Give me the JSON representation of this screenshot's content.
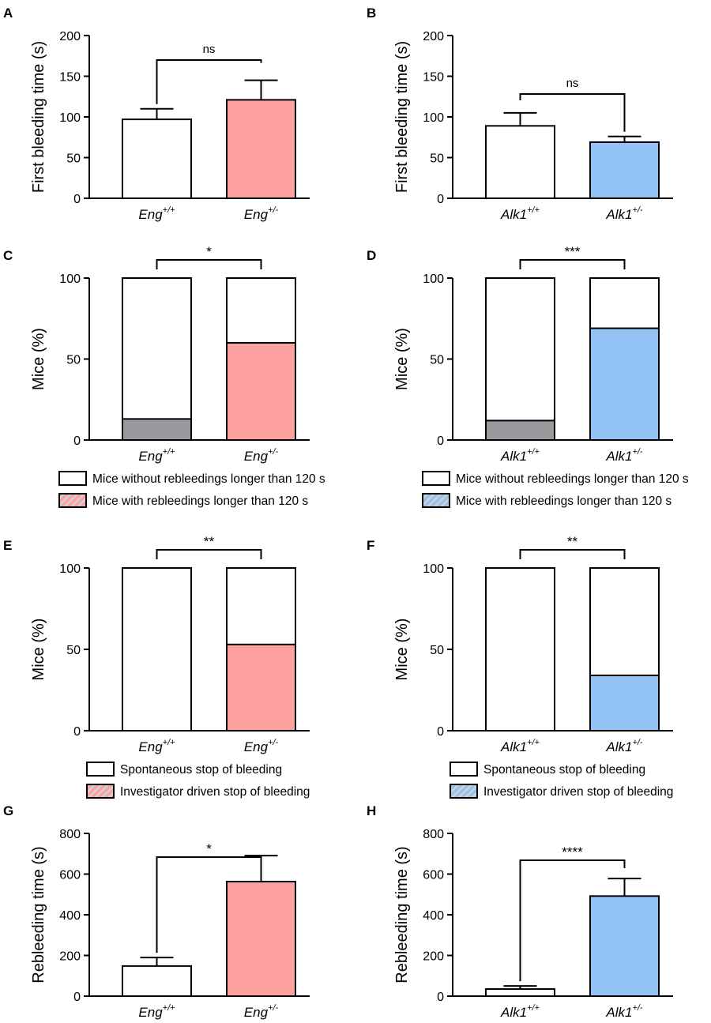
{
  "colors": {
    "control": "#ffffff",
    "eng": "#fca0a0",
    "alk": "#93c2f5",
    "grey": "#9a9a9e",
    "hatch_light": "#d2d2d2",
    "stroke": "#000000"
  },
  "chart_data": [
    {
      "panel": "A",
      "type": "bar",
      "genotype": "Eng",
      "ylabel": "First bleeding time (s)",
      "ylim": [
        0,
        200
      ],
      "yticks": [
        0,
        50,
        100,
        150,
        200
      ],
      "categories": [
        {
          "base": "Eng",
          "sup": "+/+"
        },
        {
          "base": "Eng",
          "sup": "+/-"
        }
      ],
      "values": [
        97,
        121
      ],
      "errors": [
        13,
        24
      ],
      "significance": "ns"
    },
    {
      "panel": "B",
      "type": "bar",
      "genotype": "Alk1",
      "ylabel": "First bleeding time (s)",
      "ylim": [
        0,
        200
      ],
      "yticks": [
        0,
        50,
        100,
        150,
        200
      ],
      "categories": [
        {
          "base": "Alk1",
          "sup": "+/+"
        },
        {
          "base": "Alk1",
          "sup": "+/-"
        }
      ],
      "values": [
        89,
        69
      ],
      "errors": [
        16,
        7
      ],
      "significance": "ns"
    },
    {
      "panel": "C",
      "type": "stacked_bar",
      "genotype": "Eng",
      "ylabel": "Mice (%)",
      "ylim": [
        0,
        100
      ],
      "yticks": [
        0,
        50,
        100
      ],
      "categories": [
        {
          "base": "Eng",
          "sup": "+/+"
        },
        {
          "base": "Eng",
          "sup": "+/-"
        }
      ],
      "values": [
        13,
        60
      ],
      "significance": "*",
      "legend": [
        "Mice without rebleedings longer than 120 s",
        "Mice with rebleedings longer than 120 s"
      ]
    },
    {
      "panel": "D",
      "type": "stacked_bar",
      "genotype": "Alk1",
      "ylabel": "Mice (%)",
      "ylim": [
        0,
        100
      ],
      "yticks": [
        0,
        50,
        100
      ],
      "categories": [
        {
          "base": "Alk1",
          "sup": "+/+"
        },
        {
          "base": "Alk1",
          "sup": "+/-"
        }
      ],
      "values": [
        12,
        69
      ],
      "significance": "***",
      "legend": [
        "Mice without rebleedings longer than 120 s",
        "Mice with rebleedings longer than 120 s"
      ]
    },
    {
      "panel": "E",
      "type": "stacked_bar",
      "genotype": "Eng",
      "ylabel": "Mice (%)",
      "ylim": [
        0,
        100
      ],
      "yticks": [
        0,
        50,
        100
      ],
      "categories": [
        {
          "base": "Eng",
          "sup": "+/+"
        },
        {
          "base": "Eng",
          "sup": "+/-"
        }
      ],
      "values": [
        0,
        53
      ],
      "significance": "**",
      "legend": [
        "Spontaneous stop of bleeding",
        "Investigator driven stop of bleeding"
      ]
    },
    {
      "panel": "F",
      "type": "stacked_bar",
      "genotype": "Alk1",
      "ylabel": "Mice (%)",
      "ylim": [
        0,
        100
      ],
      "yticks": [
        0,
        50,
        100
      ],
      "categories": [
        {
          "base": "Alk1",
          "sup": "+/+"
        },
        {
          "base": "Alk1",
          "sup": "+/-"
        }
      ],
      "values": [
        0,
        34
      ],
      "significance": "**",
      "legend": [
        "Spontaneous stop of bleeding",
        "Investigator driven stop of bleeding"
      ]
    },
    {
      "panel": "G",
      "type": "bar",
      "genotype": "Eng",
      "ylabel": "Rebleeding time (s)",
      "ylim": [
        0,
        800
      ],
      "yticks": [
        0,
        200,
        400,
        600,
        800
      ],
      "categories": [
        {
          "base": "Eng",
          "sup": "+/+"
        },
        {
          "base": "Eng",
          "sup": "+/-"
        }
      ],
      "values": [
        148,
        563
      ],
      "errors": [
        42,
        128
      ],
      "significance": "*"
    },
    {
      "panel": "H",
      "type": "bar",
      "genotype": "Alk1",
      "ylabel": "Rebleeding time (s)",
      "ylim": [
        0,
        800
      ],
      "yticks": [
        0,
        200,
        400,
        600,
        800
      ],
      "categories": [
        {
          "base": "Alk1",
          "sup": "+/+"
        },
        {
          "base": "Alk1",
          "sup": "+/-"
        }
      ],
      "values": [
        35,
        492
      ],
      "errors": [
        15,
        86
      ],
      "significance": "****"
    }
  ]
}
